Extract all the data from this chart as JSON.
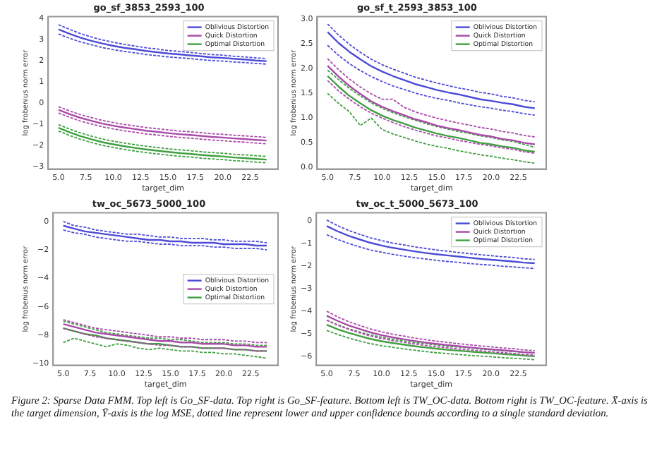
{
  "chart_data": [
    {
      "type": "line",
      "title": "go_sf_3853_2593_100",
      "xlabel": "target_dim",
      "ylabel": "log frobenius norm error",
      "legend": "top right",
      "x": [
        5,
        6,
        7,
        8,
        9,
        10,
        11,
        12,
        13,
        14,
        15,
        16,
        17,
        18,
        19,
        20,
        21,
        22,
        23,
        24
      ],
      "xlim": [
        4.05,
        25.05
      ],
      "xticks": [
        {
          "value": 5,
          "label": "5.0"
        },
        {
          "value": 7.5,
          "label": "7.5"
        },
        {
          "value": 10,
          "label": "10.0"
        },
        {
          "value": 12.5,
          "label": "12.5"
        },
        {
          "value": 15,
          "label": "15.0"
        },
        {
          "value": 17.5,
          "label": "17.5"
        },
        {
          "value": 20,
          "label": "20.0"
        },
        {
          "value": 22.5,
          "label": "22.5"
        }
      ],
      "ylim": [
        -3.1,
        4.1
      ],
      "yticks": [
        {
          "value": -3,
          "label": "−3"
        },
        {
          "value": -2,
          "label": "−2"
        },
        {
          "value": -1,
          "label": "−1"
        },
        0,
        1,
        2,
        3,
        4
      ],
      "series": [
        {
          "name": "Oblivious Distortion",
          "color": "#4b4bd6",
          "line_style": "solid",
          "values": [
            3.5,
            3.29,
            3.11,
            2.96,
            2.83,
            2.72,
            2.63,
            2.56,
            2.48,
            2.42,
            2.36,
            2.32,
            2.27,
            2.23,
            2.18,
            2.15,
            2.11,
            2.08,
            2.03,
            2.0
          ]
        },
        {
          "color": "#4b4bd6",
          "line_style": "dashed",
          "values": [
            3.72,
            3.5,
            3.3,
            3.14,
            3.0,
            2.89,
            2.79,
            2.71,
            2.63,
            2.57,
            2.5,
            2.46,
            2.41,
            2.36,
            2.31,
            2.28,
            2.23,
            2.2,
            2.15,
            2.12
          ]
        },
        {
          "color": "#4b4bd6",
          "line_style": "dashed",
          "values": [
            3.28,
            3.08,
            2.91,
            2.77,
            2.64,
            2.54,
            2.46,
            2.39,
            2.31,
            2.26,
            2.2,
            2.16,
            2.12,
            2.07,
            2.03,
            2.0,
            1.96,
            1.93,
            1.89,
            1.86
          ]
        },
        {
          "name": "Quick Distortion",
          "color": "#a94aa9",
          "line_style": "solid",
          "values": [
            -0.3,
            -0.5,
            -0.68,
            -0.82,
            -0.95,
            -1.05,
            -1.14,
            -1.21,
            -1.29,
            -1.34,
            -1.4,
            -1.45,
            -1.49,
            -1.53,
            -1.58,
            -1.61,
            -1.65,
            -1.68,
            -1.72,
            -1.75
          ]
        },
        {
          "color": "#a94aa9",
          "line_style": "dashed",
          "values": [
            -0.15,
            -0.35,
            -0.53,
            -0.67,
            -0.8,
            -0.9,
            -0.99,
            -1.06,
            -1.14,
            -1.19,
            -1.25,
            -1.3,
            -1.34,
            -1.38,
            -1.43,
            -1.46,
            -1.5,
            -1.53,
            -1.57,
            -1.6
          ]
        },
        {
          "color": "#a94aa9",
          "line_style": "dashed",
          "values": [
            -0.45,
            -0.65,
            -0.83,
            -0.97,
            -1.1,
            -1.2,
            -1.29,
            -1.36,
            -1.44,
            -1.49,
            -1.55,
            -1.6,
            -1.64,
            -1.68,
            -1.73,
            -1.76,
            -1.8,
            -1.83,
            -1.87,
            -1.9
          ]
        },
        {
          "name": "Optimal Distortion",
          "color": "#3f9f3f",
          "line_style": "solid",
          "values": [
            -1.15,
            -1.36,
            -1.54,
            -1.69,
            -1.83,
            -1.93,
            -2.02,
            -2.1,
            -2.17,
            -2.23,
            -2.29,
            -2.34,
            -2.38,
            -2.43,
            -2.47,
            -2.5,
            -2.55,
            -2.58,
            -2.62,
            -2.65
          ]
        },
        {
          "color": "#3f9f3f",
          "line_style": "dashed",
          "values": [
            -1.0,
            -1.21,
            -1.39,
            -1.54,
            -1.68,
            -1.78,
            -1.87,
            -1.95,
            -2.02,
            -2.08,
            -2.14,
            -2.19,
            -2.23,
            -2.28,
            -2.32,
            -2.35,
            -2.4,
            -2.43,
            -2.47,
            -2.5
          ]
        },
        {
          "color": "#3f9f3f",
          "line_style": "dashed",
          "values": [
            -1.3,
            -1.51,
            -1.69,
            -1.84,
            -1.98,
            -2.08,
            -2.17,
            -2.25,
            -2.32,
            -2.38,
            -2.44,
            -2.49,
            -2.53,
            -2.58,
            -2.62,
            -2.65,
            -2.7,
            -2.73,
            -2.77,
            -2.8
          ]
        }
      ]
    },
    {
      "type": "line",
      "title": "go_sf_t_2593_3853_100",
      "xlabel": "target_dim",
      "ylabel": "log frobenius norm error",
      "legend": "top right",
      "x": [
        5,
        6,
        7,
        8,
        9,
        10,
        11,
        12,
        13,
        14,
        15,
        16,
        17,
        18,
        19,
        20,
        21,
        22,
        23,
        24
      ],
      "xlim": [
        4.05,
        25.05
      ],
      "xticks": [
        {
          "value": 5,
          "label": "5.0"
        },
        {
          "value": 7.5,
          "label": "7.5"
        },
        {
          "value": 10,
          "label": "10.0"
        },
        {
          "value": 12.5,
          "label": "12.5"
        },
        {
          "value": 15,
          "label": "15.0"
        },
        {
          "value": 17.5,
          "label": "17.5"
        },
        {
          "value": 20,
          "label": "20.0"
        },
        {
          "value": 22.5,
          "label": "22.5"
        }
      ],
      "ylim": [
        -0.03,
        3.05
      ],
      "yticks": [
        {
          "value": 0,
          "label": "0.0"
        },
        {
          "value": 0.5,
          "label": "0.5"
        },
        {
          "value": 1,
          "label": "1.0"
        },
        {
          "value": 1.5,
          "label": "1.5"
        },
        {
          "value": 2,
          "label": "2.0"
        },
        {
          "value": 2.5,
          "label": "2.5"
        },
        {
          "value": 3,
          "label": "3.0"
        }
      ],
      "series": [
        {
          "name": "Oblivious Distortion",
          "color": "#4b4bd6",
          "line_style": "solid",
          "values": [
            2.74,
            2.52,
            2.34,
            2.19,
            2.05,
            1.94,
            1.85,
            1.77,
            1.69,
            1.63,
            1.57,
            1.52,
            1.48,
            1.43,
            1.38,
            1.35,
            1.31,
            1.28,
            1.23,
            1.2
          ]
        },
        {
          "color": "#4b4bd6",
          "line_style": "dashed",
          "values": [
            2.9,
            2.68,
            2.49,
            2.33,
            2.19,
            2.08,
            1.99,
            1.91,
            1.83,
            1.77,
            1.71,
            1.66,
            1.61,
            1.57,
            1.52,
            1.49,
            1.44,
            1.41,
            1.36,
            1.33
          ]
        },
        {
          "color": "#4b4bd6",
          "line_style": "dashed",
          "values": [
            2.47,
            2.27,
            2.1,
            1.96,
            1.84,
            1.74,
            1.65,
            1.58,
            1.51,
            1.45,
            1.4,
            1.36,
            1.31,
            1.27,
            1.23,
            1.2,
            1.16,
            1.13,
            1.09,
            1.06
          ]
        },
        {
          "name": "Quick Distortion",
          "color": "#a94aa9",
          "line_style": "solid",
          "values": [
            2.06,
            1.84,
            1.65,
            1.49,
            1.34,
            1.23,
            1.14,
            1.06,
            0.98,
            0.92,
            0.85,
            0.8,
            0.76,
            0.71,
            0.66,
            0.63,
            0.58,
            0.55,
            0.5,
            0.47
          ]
        },
        {
          "color": "#a94aa9",
          "line_style": "dashed",
          "values": [
            2.2,
            1.98,
            1.79,
            1.63,
            1.49,
            1.38,
            1.38,
            1.22,
            1.13,
            1.06,
            1.0,
            0.95,
            0.9,
            0.86,
            0.81,
            0.78,
            0.73,
            0.7,
            0.65,
            0.62
          ]
        },
        {
          "color": "#a94aa9",
          "line_style": "dashed",
          "values": [
            1.76,
            1.55,
            1.38,
            1.23,
            1.1,
            1.0,
            0.91,
            0.83,
            0.76,
            0.7,
            0.64,
            0.6,
            0.55,
            0.51,
            0.47,
            0.44,
            0.4,
            0.37,
            0.32,
            0.29
          ]
        },
        {
          "name": "Optimal Distortion",
          "color": "#3f9f3f",
          "line_style": "solid",
          "values": [
            1.85,
            1.64,
            1.45,
            1.3,
            1.16,
            1.05,
            0.96,
            0.89,
            0.81,
            0.75,
            0.69,
            0.64,
            0.6,
            0.55,
            0.5,
            0.47,
            0.43,
            0.4,
            0.35,
            0.32
          ]
        },
        {
          "color": "#3f9f3f",
          "line_style": "dashed",
          "values": [
            1.97,
            1.78,
            1.6,
            1.45,
            1.31,
            1.2,
            1.11,
            1.03,
            0.96,
            0.89,
            0.83,
            0.78,
            0.73,
            0.69,
            0.64,
            0.61,
            0.56,
            0.53,
            0.47,
            0.41
          ]
        },
        {
          "color": "#3f9f3f",
          "line_style": "dashed",
          "values": [
            1.5,
            1.3,
            1.13,
            0.85,
            1.0,
            0.77,
            0.68,
            0.61,
            0.54,
            0.48,
            0.43,
            0.39,
            0.34,
            0.3,
            0.26,
            0.23,
            0.19,
            0.16,
            0.12,
            0.09
          ]
        }
      ]
    },
    {
      "type": "line",
      "title": "tw_oc_5673_5000_100",
      "xlabel": "target_dim",
      "ylabel": "log frobenius norm error",
      "legend": "right",
      "x": [
        5,
        6,
        7,
        8,
        9,
        10,
        11,
        12,
        13,
        14,
        15,
        16,
        17,
        18,
        19,
        20,
        21,
        22,
        23,
        24
      ],
      "xlim": [
        4.05,
        25.05
      ],
      "xticks": [
        {
          "value": 5,
          "label": "5.0"
        },
        {
          "value": 7.5,
          "label": "7.5"
        },
        {
          "value": 10,
          "label": "10.0"
        },
        {
          "value": 12.5,
          "label": "12.5"
        },
        {
          "value": 15,
          "label": "15.0"
        },
        {
          "value": 17.5,
          "label": "17.5"
        },
        {
          "value": 20,
          "label": "20.0"
        },
        {
          "value": 22.5,
          "label": "22.5"
        }
      ],
      "ylim": [
        -10.1,
        0.6
      ],
      "yticks": [
        {
          "value": -10,
          "label": "−10"
        },
        {
          "value": -8,
          "label": "−8"
        },
        {
          "value": -6,
          "label": "−6"
        },
        {
          "value": -4,
          "label": "−4"
        },
        {
          "value": -2,
          "label": "−2"
        },
        0
      ],
      "series": [
        {
          "name": "Oblivious Distortion",
          "color": "#4b4bd6",
          "line_style": "solid",
          "values": [
            -0.3,
            -0.5,
            -0.7,
            -0.8,
            -0.9,
            -1.0,
            -1.1,
            -1.2,
            -1.3,
            -1.3,
            -1.4,
            -1.4,
            -1.5,
            -1.5,
            -1.5,
            -1.6,
            -1.6,
            -1.6,
            -1.7,
            -1.7
          ]
        },
        {
          "color": "#4b4bd6",
          "line_style": "dashed",
          "values": [
            0.0,
            -0.3,
            -0.4,
            -0.6,
            -0.7,
            -0.8,
            -0.9,
            -0.9,
            -1.0,
            -1.1,
            -1.1,
            -1.2,
            -1.2,
            -1.2,
            -1.3,
            -1.3,
            -1.4,
            -1.4,
            -1.4,
            -1.5
          ]
        },
        {
          "color": "#4b4bd6",
          "line_style": "dashed",
          "values": [
            -0.6,
            -0.8,
            -0.9,
            -1.1,
            -1.2,
            -1.3,
            -1.4,
            -1.4,
            -1.5,
            -1.6,
            -1.6,
            -1.7,
            -1.7,
            -1.7,
            -1.8,
            -1.8,
            -1.9,
            -1.9,
            -1.9,
            -2.0
          ]
        },
        {
          "name": "Quick Distortion",
          "color": "#a94aa9",
          "line_style": "solid",
          "values": [
            -7.2,
            -7.4,
            -7.6,
            -7.8,
            -7.9,
            -8.0,
            -8.1,
            -8.2,
            -8.3,
            -8.4,
            -8.4,
            -8.5,
            -8.5,
            -8.6,
            -8.6,
            -8.6,
            -8.7,
            -8.7,
            -8.8,
            -8.8
          ]
        },
        {
          "color": "#a94aa9",
          "line_style": "dashed",
          "values": [
            -6.9,
            -7.1,
            -7.3,
            -7.5,
            -7.6,
            -7.7,
            -7.8,
            -7.9,
            -8.0,
            -8.1,
            -8.1,
            -8.2,
            -8.2,
            -8.3,
            -8.3,
            -8.3,
            -8.4,
            -8.4,
            -8.5,
            -8.5
          ]
        },
        {
          "color": "#a94aa9",
          "line_style": "dashed",
          "values": [
            -7.5,
            -7.7,
            -7.9,
            -8.1,
            -8.2,
            -8.3,
            -8.4,
            -8.5,
            -8.6,
            -8.7,
            -8.7,
            -8.8,
            -8.8,
            -8.9,
            -8.9,
            -8.9,
            -9.0,
            -9.0,
            -9.1,
            -9.1
          ]
        },
        {
          "name": "Optimal Distortion",
          "color": "#3f9f3f",
          "line_style": "solid",
          "values": [
            -7.5,
            -7.7,
            -7.9,
            -8.0,
            -8.2,
            -8.3,
            -8.4,
            -8.5,
            -8.6,
            -8.6,
            -8.7,
            -8.8,
            -8.8,
            -8.9,
            -8.9,
            -8.9,
            -9.0,
            -9.0,
            -9.1,
            -9.1
          ]
        },
        {
          "color": "#3f9f3f",
          "line_style": "dashed",
          "values": [
            -7.0,
            -7.2,
            -7.4,
            -7.6,
            -7.8,
            -7.9,
            -8.0,
            -8.1,
            -8.2,
            -8.2,
            -8.3,
            -8.3,
            -8.4,
            -8.5,
            -8.5,
            -8.5,
            -8.6,
            -8.6,
            -8.7,
            -8.7
          ]
        },
        {
          "color": "#3f9f3f",
          "line_style": "dashed",
          "values": [
            -8.5,
            -8.2,
            -8.4,
            -8.6,
            -8.8,
            -8.6,
            -8.7,
            -8.9,
            -9.0,
            -8.9,
            -9.0,
            -9.1,
            -9.1,
            -9.2,
            -9.2,
            -9.3,
            -9.3,
            -9.4,
            -9.5,
            -9.6
          ]
        }
      ]
    },
    {
      "type": "line",
      "title": "tw_oc_t_5000_5673_100",
      "xlabel": "target_dim",
      "ylabel": "log frobenius norm error",
      "legend": "top right",
      "x": [
        5,
        6,
        7,
        8,
        9,
        10,
        11,
        12,
        13,
        14,
        15,
        16,
        17,
        18,
        19,
        20,
        21,
        22,
        23,
        24
      ],
      "xlim": [
        4.05,
        25.05
      ],
      "xticks": [
        {
          "value": 5,
          "label": "5.0"
        },
        {
          "value": 7.5,
          "label": "7.5"
        },
        {
          "value": 10,
          "label": "10.0"
        },
        {
          "value": 12.5,
          "label": "12.5"
        },
        {
          "value": 15,
          "label": "15.0"
        },
        {
          "value": 17.5,
          "label": "17.5"
        },
        {
          "value": 20,
          "label": "20.0"
        },
        {
          "value": 22.5,
          "label": "22.5"
        }
      ],
      "ylim": [
        -6.4,
        0.37
      ],
      "yticks": [
        {
          "value": -6,
          "label": "−6"
        },
        {
          "value": -5,
          "label": "−5"
        },
        {
          "value": -4,
          "label": "−4"
        },
        {
          "value": -3,
          "label": "−3"
        },
        {
          "value": -2,
          "label": "−2"
        },
        {
          "value": -1,
          "label": "−1"
        },
        0
      ],
      "annotations": [
        "Figure 2: Sparse Data FMM. Top left is Go_SF-data. Top right is Go_SF-feature. Bottom left is TW_OC-data. Bottom right is TW_OC-feature. X̄-axis is the target dimension, Ȳ-axis is the log MSE, dotted line represent lower and upper confidence bounds according to a single standard deviation."
      ],
      "series": [
        {
          "name": "Oblivious Distortion",
          "color": "#4b4bd6",
          "line_style": "solid",
          "values": [
            -0.22,
            -0.45,
            -0.65,
            -0.81,
            -0.96,
            -1.08,
            -1.18,
            -1.26,
            -1.34,
            -1.41,
            -1.47,
            -1.52,
            -1.57,
            -1.62,
            -1.67,
            -1.71,
            -1.75,
            -1.79,
            -1.84,
            -1.87
          ]
        },
        {
          "color": "#4b4bd6",
          "line_style": "dashed",
          "values": [
            0.05,
            -0.2,
            -0.41,
            -0.58,
            -0.74,
            -0.86,
            -0.97,
            -1.05,
            -1.14,
            -1.21,
            -1.28,
            -1.33,
            -1.39,
            -1.44,
            -1.49,
            -1.53,
            -1.58,
            -1.61,
            -1.67,
            -1.7
          ]
        },
        {
          "color": "#4b4bd6",
          "line_style": "dashed",
          "values": [
            -0.6,
            -0.81,
            -0.99,
            -1.14,
            -1.28,
            -1.38,
            -1.47,
            -1.55,
            -1.62,
            -1.68,
            -1.74,
            -1.79,
            -1.83,
            -1.88,
            -1.92,
            -1.95,
            -2.0,
            -2.03,
            -2.07,
            -2.1
          ]
        },
        {
          "name": "Quick Distortion",
          "color": "#a94aa9",
          "line_style": "solid",
          "values": [
            -4.2,
            -4.43,
            -4.63,
            -4.79,
            -4.94,
            -5.06,
            -5.16,
            -5.24,
            -5.32,
            -5.39,
            -5.45,
            -5.5,
            -5.55,
            -5.6,
            -5.65,
            -5.69,
            -5.73,
            -5.77,
            -5.82,
            -5.85
          ]
        },
        {
          "color": "#a94aa9",
          "line_style": "dashed",
          "values": [
            -4.0,
            -4.25,
            -4.46,
            -4.63,
            -4.79,
            -4.91,
            -5.02,
            -5.1,
            -5.19,
            -5.26,
            -5.33,
            -5.38,
            -5.44,
            -5.49,
            -5.54,
            -5.58,
            -5.63,
            -5.66,
            -5.72,
            -5.75
          ]
        },
        {
          "color": "#a94aa9",
          "line_style": "dashed",
          "values": [
            -4.4,
            -4.62,
            -4.8,
            -4.96,
            -5.1,
            -5.21,
            -5.3,
            -5.38,
            -5.45,
            -5.52,
            -5.58,
            -5.62,
            -5.67,
            -5.72,
            -5.76,
            -5.8,
            -5.84,
            -5.87,
            -5.92,
            -5.95
          ]
        },
        {
          "name": "Optimal Distortion",
          "color": "#3f9f3f",
          "line_style": "solid",
          "values": [
            -4.6,
            -4.8,
            -4.96,
            -5.1,
            -5.23,
            -5.33,
            -5.41,
            -5.48,
            -5.55,
            -5.61,
            -5.66,
            -5.71,
            -5.75,
            -5.79,
            -5.83,
            -5.86,
            -5.9,
            -5.93,
            -5.97,
            -6.0
          ]
        },
        {
          "color": "#3f9f3f",
          "line_style": "dashed",
          "values": [
            -4.4,
            -4.6,
            -4.78,
            -4.92,
            -5.05,
            -5.15,
            -5.24,
            -5.31,
            -5.39,
            -5.44,
            -5.5,
            -5.55,
            -5.59,
            -5.63,
            -5.68,
            -5.71,
            -5.75,
            -5.78,
            -5.82,
            -5.85
          ]
        },
        {
          "color": "#3f9f3f",
          "line_style": "dashed",
          "values": [
            -4.85,
            -5.03,
            -5.19,
            -5.32,
            -5.44,
            -5.53,
            -5.6,
            -5.67,
            -5.73,
            -5.79,
            -5.84,
            -5.88,
            -5.92,
            -5.96,
            -5.99,
            -6.02,
            -6.06,
            -6.09,
            -6.12,
            -6.15
          ]
        }
      ]
    }
  ]
}
